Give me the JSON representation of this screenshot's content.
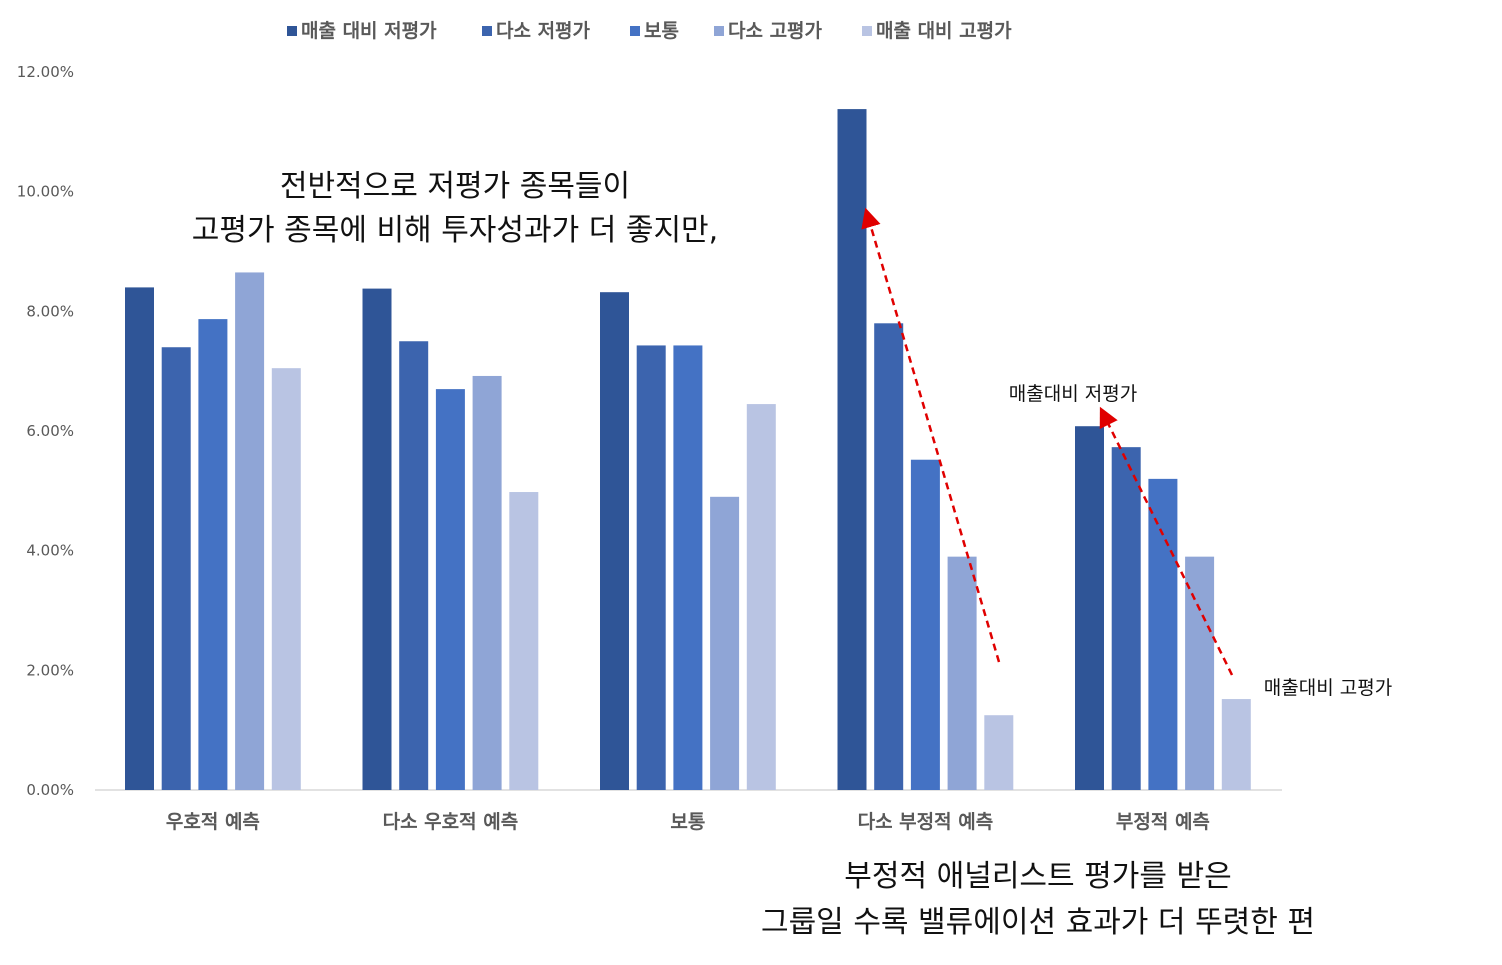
{
  "chart_data": {
    "type": "bar",
    "categories": [
      "우호적 예측",
      "다소 우호적 예측",
      "보통",
      "다소 부정적 예측",
      "부정적 예측"
    ],
    "series": [
      {
        "name": "매출 대비 저평가",
        "color": "#2F5597",
        "values": [
          8.4,
          8.38,
          8.32,
          11.38,
          6.08
        ]
      },
      {
        "name": "다소 저평가",
        "color": "#3C64AE",
        "values": [
          7.4,
          7.5,
          7.43,
          7.8,
          5.73
        ]
      },
      {
        "name": "보통",
        "color": "#4472C4",
        "values": [
          7.87,
          6.7,
          7.43,
          5.52,
          5.2
        ]
      },
      {
        "name": "다소 고평가",
        "color": "#8FA5D6",
        "values": [
          8.65,
          6.92,
          4.9,
          3.9,
          3.9
        ]
      },
      {
        "name": "매출 대비 고평가",
        "color": "#B9C4E3",
        "values": [
          7.05,
          4.98,
          6.45,
          1.25,
          1.52
        ]
      }
    ],
    "y_ticks": [
      "0.00%",
      "2.00%",
      "4.00%",
      "6.00%",
      "8.00%",
      "10.00%",
      "12.00%"
    ],
    "ylim": [
      0,
      12
    ],
    "y_unit": "%",
    "legend_position": "top",
    "grid": false,
    "title": "",
    "xlabel": "",
    "ylabel": ""
  },
  "annotations": {
    "top_text": [
      "전반적으로 저평가 종목들이",
      "고평가 종목에 비해 투자성과가 더 좋지만,"
    ],
    "bottom_text": [
      "부정적 애널리스트 평가를 받은",
      "그룹일 수록 밸류에이션 효과가 더 뚜렷한 편"
    ],
    "high_label": "매출대비 저평가",
    "low_label": "매출대비 고평가",
    "arrow_color": "#E00000"
  }
}
